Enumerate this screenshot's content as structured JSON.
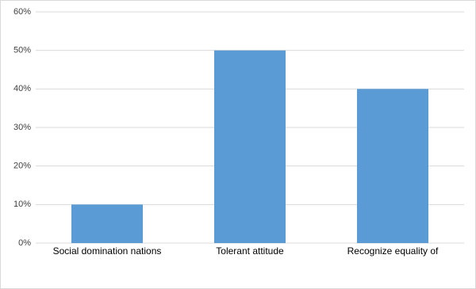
{
  "chart_data": {
    "type": "bar",
    "categories": [
      "Social domination nations",
      "Tolerant attitude",
      "Recognize equality of"
    ],
    "values": [
      10,
      50,
      40
    ],
    "color": "#5b9bd5",
    "ylim": [
      0,
      60
    ],
    "yticks": [
      {
        "value": 0,
        "label": "0%"
      },
      {
        "value": 10,
        "label": "10%"
      },
      {
        "value": 20,
        "label": "20%"
      },
      {
        "value": 30,
        "label": "30%"
      },
      {
        "value": 40,
        "label": "40%"
      },
      {
        "value": 50,
        "label": "50%"
      },
      {
        "value": 60,
        "label": "60%"
      }
    ],
    "grid": true
  }
}
